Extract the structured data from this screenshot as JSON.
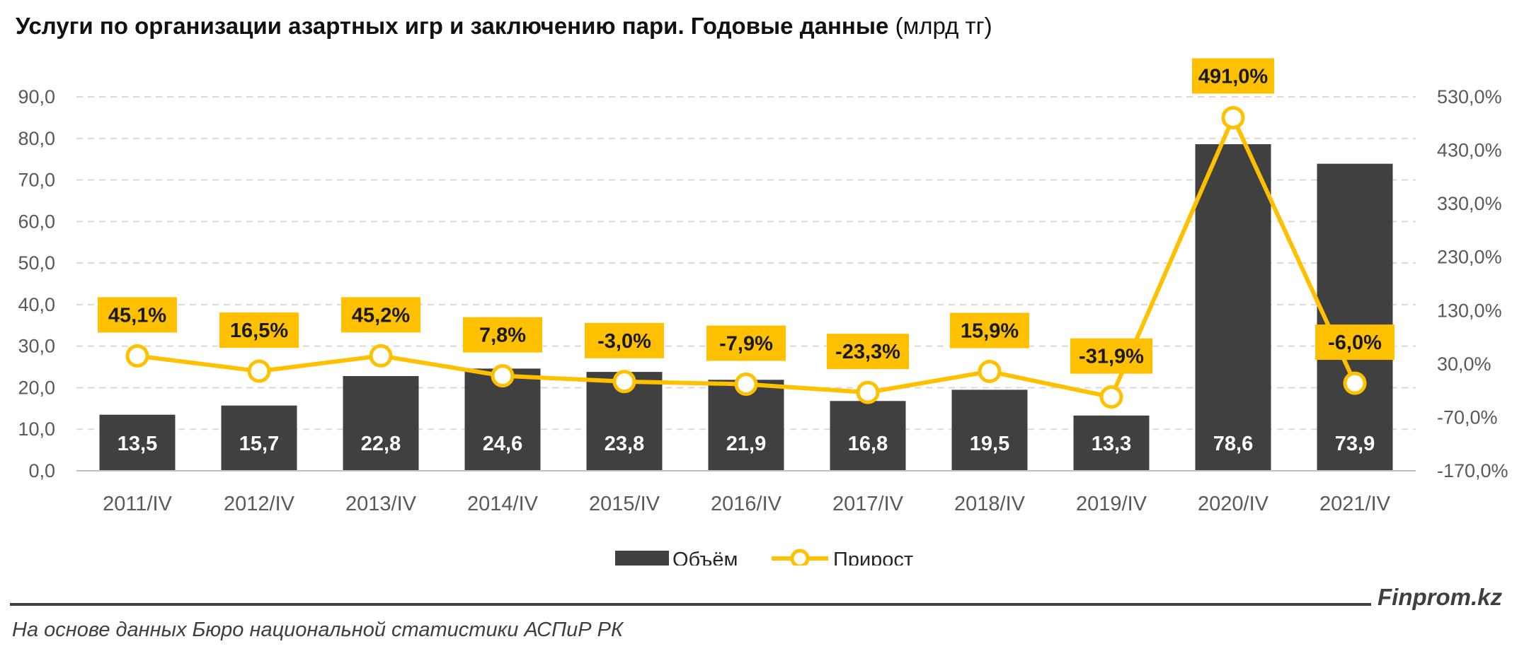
{
  "chart_data": {
    "type": "bar",
    "title": "Услуги по организации азартных игр и заключению пари. Годовые данные",
    "title_unit": "(млрд тг)",
    "categories": [
      "2011/IV",
      "2012/IV",
      "2013/IV",
      "2014/IV",
      "2015/IV",
      "2016/IV",
      "2017/IV",
      "2018/IV",
      "2019/IV",
      "2020/IV",
      "2021/IV"
    ],
    "series": [
      {
        "name": "Объём",
        "type": "bar",
        "axis": "left",
        "color": "#404040",
        "values": [
          13.5,
          15.7,
          22.8,
          24.6,
          23.8,
          21.9,
          16.8,
          19.5,
          13.3,
          78.6,
          73.9
        ],
        "labels": [
          "13,5",
          "15,7",
          "22,8",
          "24,6",
          "23,8",
          "21,9",
          "16,8",
          "19,5",
          "13,3",
          "78,6",
          "73,9"
        ]
      },
      {
        "name": "Прирост",
        "type": "line",
        "axis": "right",
        "color": "#FFC000",
        "values": [
          45.1,
          16.5,
          45.2,
          7.8,
          -3.0,
          -7.9,
          -23.3,
          15.9,
          -31.9,
          491.0,
          -6.0
        ],
        "labels": [
          "45,1%",
          "16,5%",
          "45,2%",
          "7,8%",
          "-3,0%",
          "-7,9%",
          "-23,3%",
          "15,9%",
          "-31,9%",
          "491,0%",
          "-6,0%"
        ]
      }
    ],
    "y_left": {
      "min": 0,
      "max": 90,
      "ticks": [
        "0,0",
        "10,0",
        "20,0",
        "30,0",
        "40,0",
        "50,0",
        "60,0",
        "70,0",
        "80,0",
        "90,0"
      ]
    },
    "y_right": {
      "min": -170,
      "max": 530,
      "ticks": [
        "-170,0%",
        "-70,0%",
        "30,0%",
        "130,0%",
        "230,0%",
        "330,0%",
        "430,0%",
        "530,0%"
      ]
    },
    "grid": true,
    "legend": "bottom-center"
  },
  "footer": {
    "brand": "Finprom.kz",
    "source": "На основе данных Бюро национальной статистики АСПиР РК"
  }
}
